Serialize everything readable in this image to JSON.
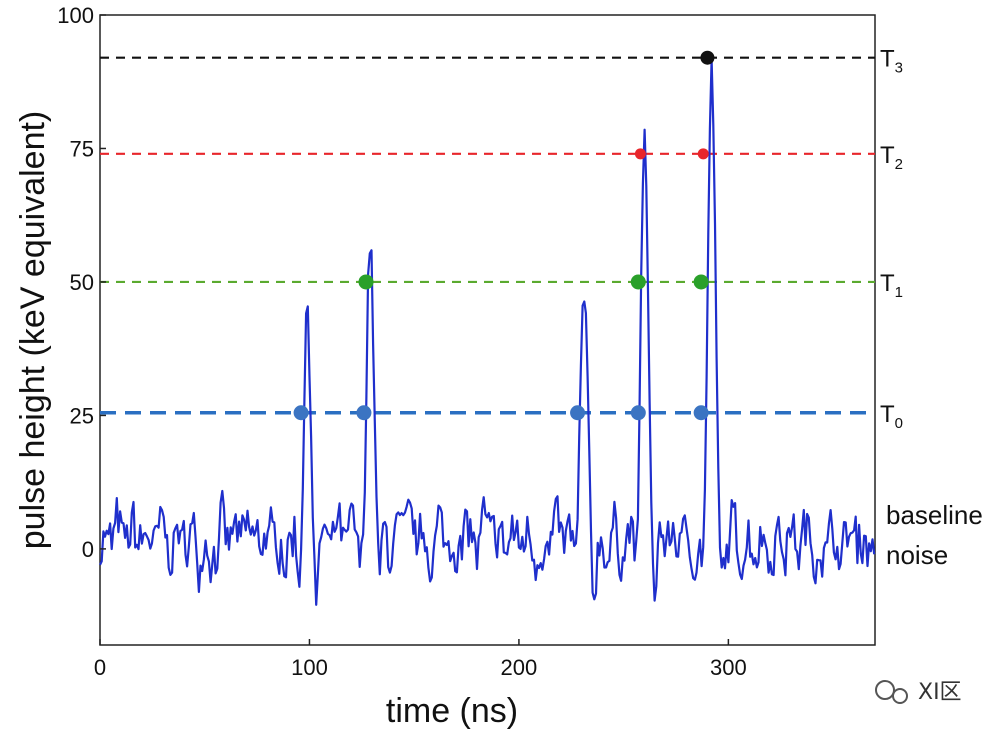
{
  "chart_data": {
    "type": "line",
    "xlabel": "time (ns)",
    "ylabel": "pulse height (keV equivalent)",
    "xlim": [
      0,
      370
    ],
    "ylim": [
      -18,
      100
    ],
    "x_ticks": [
      "0",
      "100",
      "200",
      "300"
    ],
    "y_ticks": [
      "0",
      "25",
      "50",
      "75",
      "100"
    ],
    "grid": false,
    "thresholds": [
      {
        "label": "T",
        "sub": "0",
        "value": 25.5,
        "color": "#2a6fc2"
      },
      {
        "label": "T",
        "sub": "1",
        "value": 50,
        "color": "#5aaa2f"
      },
      {
        "label": "T",
        "sub": "2",
        "value": 74,
        "color": "#e8262b"
      },
      {
        "label": "T",
        "sub": "3",
        "value": 92,
        "color": "#111111"
      }
    ],
    "baseline_label": [
      "baseline",
      "noise"
    ],
    "series_color": "#1f2fcc",
    "peaks": [
      {
        "x": 99,
        "height": 44
      },
      {
        "x": 129,
        "height": 59
      },
      {
        "x": 231,
        "height": 46
      },
      {
        "x": 260,
        "height": 77
      },
      {
        "x": 292,
        "height": 93
      }
    ],
    "crossings": [
      {
        "x": 96,
        "y": 25.5,
        "color": "#3b74c2"
      },
      {
        "x": 126,
        "y": 25.5,
        "color": "#3b74c2"
      },
      {
        "x": 228,
        "y": 25.5,
        "color": "#3b74c2"
      },
      {
        "x": 257,
        "y": 25.5,
        "color": "#3b74c2"
      },
      {
        "x": 287,
        "y": 25.5,
        "color": "#3b74c2"
      },
      {
        "x": 127,
        "y": 50,
        "color": "#2aa02a"
      },
      {
        "x": 257,
        "y": 50,
        "color": "#2aa02a"
      },
      {
        "x": 287,
        "y": 50,
        "color": "#2aa02a"
      },
      {
        "x": 258,
        "y": 74,
        "color": "#e8262b"
      },
      {
        "x": 288,
        "y": 74,
        "color": "#e8262b"
      },
      {
        "x": 290,
        "y": 92,
        "color": "#111111"
      }
    ]
  },
  "watermark": "XI区"
}
